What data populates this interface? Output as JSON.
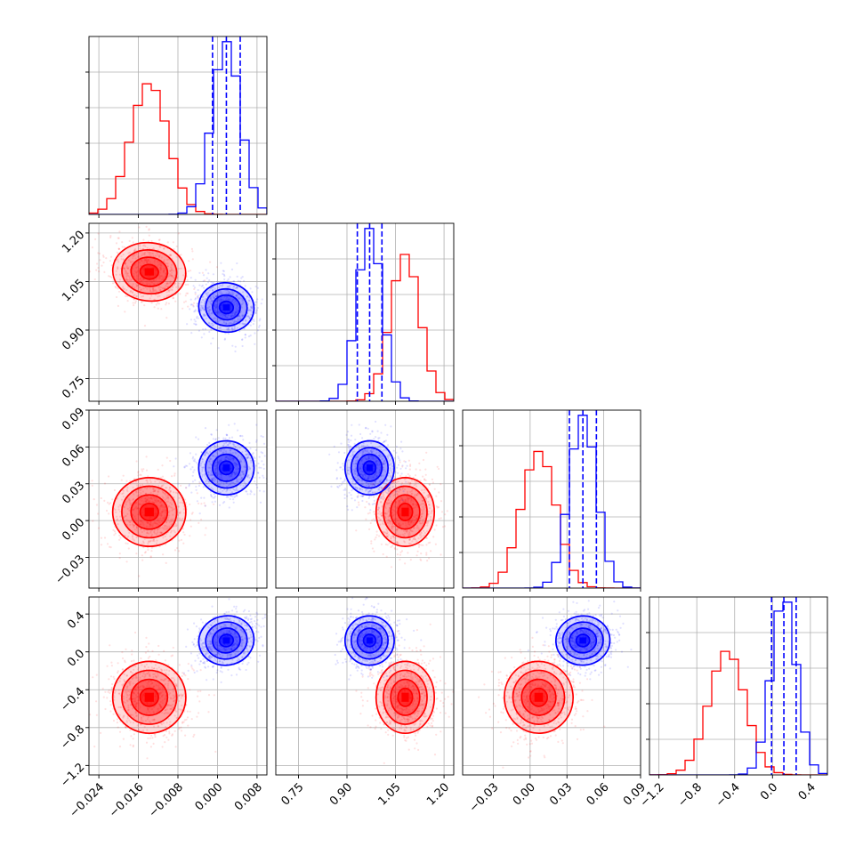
{
  "chart_data": {
    "type": "corner",
    "grid": true,
    "parameters": [
      {
        "range": [
          -0.026,
          0.01
        ],
        "ticks": [
          -0.024,
          -0.016,
          -0.008,
          0.0,
          0.008
        ],
        "tick_labels": [
          "−0.024",
          "−0.016",
          "−0.008",
          "0.000",
          "0.008"
        ]
      },
      {
        "range": [
          0.68,
          1.23
        ],
        "ticks": [
          0.75,
          0.9,
          1.05,
          1.2
        ],
        "tick_labels": [
          "0.75",
          "0.90",
          "1.05",
          "1.20"
        ]
      },
      {
        "range": [
          -0.055,
          0.09
        ],
        "ticks": [
          -0.03,
          0.0,
          0.03,
          0.06,
          0.09
        ],
        "tick_labels": [
          "−0.03",
          "0.00",
          "0.03",
          "0.06",
          "0.09"
        ]
      },
      {
        "range": [
          -1.3,
          0.58
        ],
        "ticks": [
          -1.2,
          -0.8,
          -0.4,
          0.0,
          0.4
        ],
        "tick_labels": [
          "−1.2",
          "−0.8",
          "−0.4",
          "0.0",
          "0.4"
        ]
      }
    ],
    "series": [
      {
        "color": "#ff0000",
        "mean": [
          -0.0138,
          1.08,
          0.007,
          -0.48
        ],
        "sd": [
          0.0037,
          0.045,
          0.014,
          0.19
        ],
        "corr": [
          [
            0,
            1,
            -0.15
          ],
          [
            2,
            3,
            0.1
          ]
        ],
        "quantile_lines": false
      },
      {
        "color": "#0000ff",
        "mean": [
          0.0018,
          0.97,
          0.043,
          0.12
        ],
        "sd": [
          0.0028,
          0.038,
          0.011,
          0.13
        ],
        "corr": [
          [
            0,
            1,
            -0.2
          ],
          [
            0,
            3,
            0.25
          ],
          [
            2,
            3,
            0.1
          ]
        ],
        "quantile_lines": true
      }
    ],
    "quantiles": [
      0.16,
      0.5,
      0.84
    ],
    "contour_levels_sigma": [
      0.5,
      1.0,
      1.5,
      2.0
    ],
    "hist_bins": 20,
    "scatter_points_per_panel": 700
  }
}
